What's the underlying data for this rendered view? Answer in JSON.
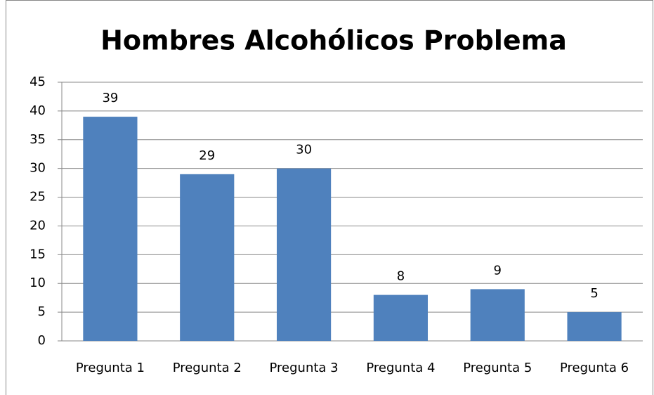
{
  "chart_data": {
    "type": "bar",
    "title": "Hombres Alcohólicos Problema",
    "categories": [
      "Pregunta 1",
      "Pregunta 2",
      "Pregunta 3",
      "Pregunta 4",
      "Pregunta 5",
      "Pregunta 6"
    ],
    "values": [
      39,
      29,
      30,
      8,
      9,
      5
    ],
    "color": "#4f81bd",
    "ylim": [
      0,
      45
    ],
    "yticks": [
      0,
      5,
      10,
      15,
      20,
      25,
      30,
      35,
      40,
      45
    ],
    "grid": true,
    "data_labels": true
  }
}
